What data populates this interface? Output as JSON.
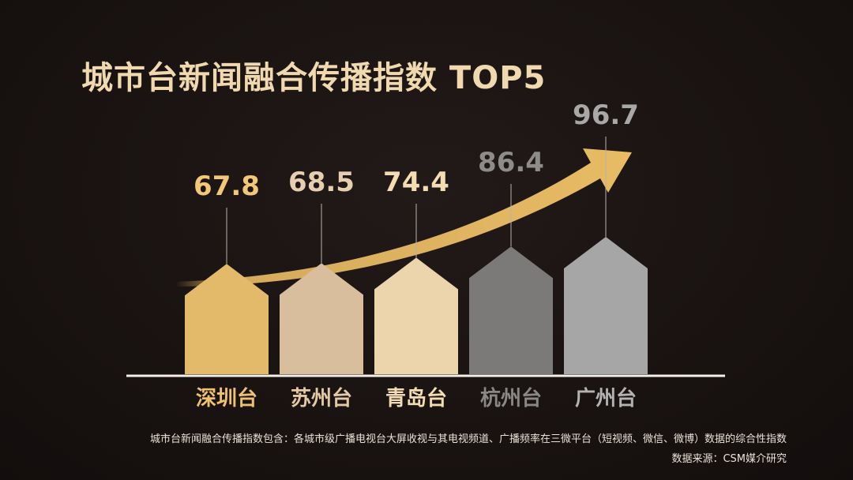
{
  "title": "城市台新闻融合传播指数 TOP5",
  "footnote": "城市台新闻融合传播指数包含：各城市级广播电视台大屏收视与其电视频道、广播频率在三微平台（短视频、微信、微博）数据的综合性指数",
  "source": "数据来源：CSM媒介研究",
  "chart_data": {
    "type": "bar",
    "categories": [
      "深圳台",
      "苏州台",
      "青岛台",
      "杭州台",
      "广州台"
    ],
    "values": [
      67.8,
      68.5,
      74.4,
      86.4,
      96.7
    ],
    "bar_colors": [
      "#e3b96a",
      "#d8be9c",
      "#ecd4ad",
      "#7c7a79",
      "#a6a6a6"
    ],
    "value_label_colors": [
      "#f2c777",
      "#e8ceb0",
      "#f4ddb2",
      "#8e8c8a",
      "#a8a8a8"
    ],
    "category_label_colors": [
      "#efc070",
      "#e3c9a4",
      "#f3dcb3",
      "#8a8886",
      "#b3b3b3"
    ],
    "trend_arrow_color": "#e8bb64",
    "title": "",
    "xlabel": "",
    "ylabel": ""
  }
}
